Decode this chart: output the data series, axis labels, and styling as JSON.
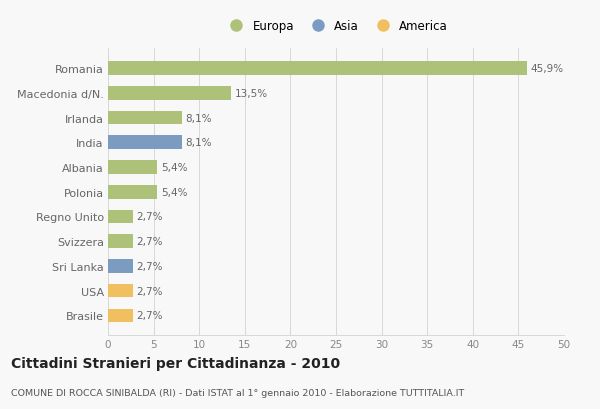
{
  "categories": [
    "Romania",
    "Macedonia d/N.",
    "Irlanda",
    "India",
    "Albania",
    "Polonia",
    "Regno Unito",
    "Svizzera",
    "Sri Lanka",
    "USA",
    "Brasile"
  ],
  "values": [
    45.9,
    13.5,
    8.1,
    8.1,
    5.4,
    5.4,
    2.7,
    2.7,
    2.7,
    2.7,
    2.7
  ],
  "labels": [
    "45,9%",
    "13,5%",
    "8,1%",
    "8,1%",
    "5,4%",
    "5,4%",
    "2,7%",
    "2,7%",
    "2,7%",
    "2,7%",
    "2,7%"
  ],
  "colors": [
    "#adc178",
    "#adc178",
    "#adc178",
    "#7b9cc0",
    "#adc178",
    "#adc178",
    "#adc178",
    "#adc178",
    "#7b9cc0",
    "#f0c060",
    "#f0c060"
  ],
  "legend_labels": [
    "Europa",
    "Asia",
    "America"
  ],
  "legend_colors": [
    "#adc178",
    "#7b9cc0",
    "#f0c060"
  ],
  "xlim": [
    0,
    50
  ],
  "xticks": [
    0,
    5,
    10,
    15,
    20,
    25,
    30,
    35,
    40,
    45,
    50
  ],
  "title": "Cittadini Stranieri per Cittadinanza - 2010",
  "subtitle": "COMUNE DI ROCCA SINIBALDA (RI) - Dati ISTAT al 1° gennaio 2010 - Elaborazione TUTTITALIA.IT",
  "bg_color": "#f8f8f8",
  "grid_color": "#d8d8d8",
  "bar_height": 0.55,
  "label_fontsize": 7.5,
  "ytick_fontsize": 8,
  "xtick_fontsize": 7.5,
  "title_fontsize": 10,
  "subtitle_fontsize": 6.8
}
